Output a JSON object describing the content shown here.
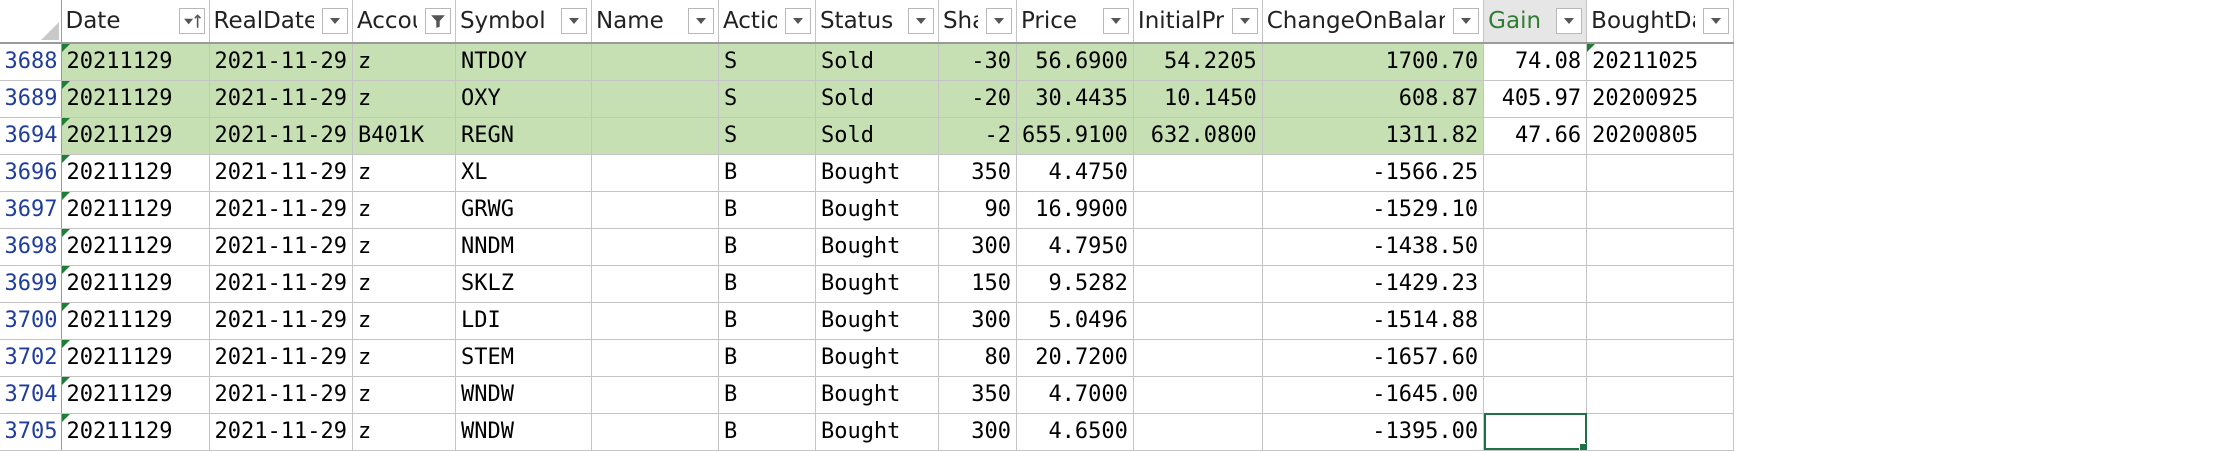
{
  "columns": [
    {
      "key": "date",
      "label": "Date",
      "filter": "sort-asc-icon"
    },
    {
      "key": "realdate",
      "label": "RealDate",
      "filter": "dropdown-icon"
    },
    {
      "key": "account",
      "label": "Account",
      "filter": "filter-active-icon"
    },
    {
      "key": "symbol",
      "label": "Symbol",
      "filter": "dropdown-icon"
    },
    {
      "key": "name",
      "label": "Name",
      "filter": "dropdown-icon"
    },
    {
      "key": "action",
      "label": "Action",
      "filter": "dropdown-icon"
    },
    {
      "key": "status",
      "label": "Status",
      "filter": "dropdown-icon"
    },
    {
      "key": "share",
      "label": "Share",
      "filter": "dropdown-icon"
    },
    {
      "key": "price",
      "label": "Price",
      "filter": "dropdown-icon"
    },
    {
      "key": "initialprice",
      "label": "InitialPrice",
      "filter": "dropdown-icon"
    },
    {
      "key": "changeonbalance",
      "label": "ChangeOnBalance",
      "filter": "dropdown-icon"
    },
    {
      "key": "gain",
      "label": "Gain",
      "filter": "dropdown-icon"
    },
    {
      "key": "boughtdate",
      "label": "BoughtDate",
      "filter": "dropdown-icon"
    }
  ],
  "rows": [
    {
      "num": "3688",
      "date": "20211129",
      "realdate": "2021-11-29",
      "account": "z",
      "symbol": "NTDOY",
      "name": "",
      "action": "S",
      "status": "Sold",
      "share": "-30",
      "price": "56.6900",
      "initialprice": "54.2205",
      "changeonbalance": "1700.70",
      "gain": "74.08",
      "boughtdate": "20211025",
      "sold": true
    },
    {
      "num": "3689",
      "date": "20211129",
      "realdate": "2021-11-29",
      "account": "z",
      "symbol": "OXY",
      "name": "",
      "action": "S",
      "status": "Sold",
      "share": "-20",
      "price": "30.4435",
      "initialprice": "10.1450",
      "changeonbalance": "608.87",
      "gain": "405.97",
      "boughtdate": "20200925",
      "sold": true
    },
    {
      "num": "3694",
      "date": "20211129",
      "realdate": "2021-11-29",
      "account": "B401K",
      "symbol": "REGN",
      "name": "",
      "action": "S",
      "status": "Sold",
      "share": "-2",
      "price": "655.9100",
      "initialprice": "632.0800",
      "changeonbalance": "1311.82",
      "gain": "47.66",
      "boughtdate": "20200805",
      "sold": true
    },
    {
      "num": "3696",
      "date": "20211129",
      "realdate": "2021-11-29",
      "account": "z",
      "symbol": "XL",
      "name": "",
      "action": "B",
      "status": "Bought",
      "share": "350",
      "price": "4.4750",
      "initialprice": "",
      "changeonbalance": "-1566.25",
      "gain": "",
      "boughtdate": ""
    },
    {
      "num": "3697",
      "date": "20211129",
      "realdate": "2021-11-29",
      "account": "z",
      "symbol": "GRWG",
      "name": "",
      "action": "B",
      "status": "Bought",
      "share": "90",
      "price": "16.9900",
      "initialprice": "",
      "changeonbalance": "-1529.10",
      "gain": "",
      "boughtdate": ""
    },
    {
      "num": "3698",
      "date": "20211129",
      "realdate": "2021-11-29",
      "account": "z",
      "symbol": "NNDM",
      "name": "",
      "action": "B",
      "status": "Bought",
      "share": "300",
      "price": "4.7950",
      "initialprice": "",
      "changeonbalance": "-1438.50",
      "gain": "",
      "boughtdate": ""
    },
    {
      "num": "3699",
      "date": "20211129",
      "realdate": "2021-11-29",
      "account": "z",
      "symbol": "SKLZ",
      "name": "",
      "action": "B",
      "status": "Bought",
      "share": "150",
      "price": "9.5282",
      "initialprice": "",
      "changeonbalance": "-1429.23",
      "gain": "",
      "boughtdate": ""
    },
    {
      "num": "3700",
      "date": "20211129",
      "realdate": "2021-11-29",
      "account": "z",
      "symbol": "LDI",
      "name": "",
      "action": "B",
      "status": "Bought",
      "share": "300",
      "price": "5.0496",
      "initialprice": "",
      "changeonbalance": "-1514.88",
      "gain": "",
      "boughtdate": ""
    },
    {
      "num": "3702",
      "date": "20211129",
      "realdate": "2021-11-29",
      "account": "z",
      "symbol": "STEM",
      "name": "",
      "action": "B",
      "status": "Bought",
      "share": "80",
      "price": "20.7200",
      "initialprice": "",
      "changeonbalance": "-1657.60",
      "gain": "",
      "boughtdate": ""
    },
    {
      "num": "3704",
      "date": "20211129",
      "realdate": "2021-11-29",
      "account": "z",
      "symbol": "WNDW",
      "name": "",
      "action": "B",
      "status": "Bought",
      "share": "350",
      "price": "4.7000",
      "initialprice": "",
      "changeonbalance": "-1645.00",
      "gain": "",
      "boughtdate": ""
    },
    {
      "num": "3705",
      "date": "20211129",
      "realdate": "2021-11-29",
      "account": "z",
      "symbol": "WNDW",
      "name": "",
      "action": "B",
      "status": "Bought",
      "share": "300",
      "price": "4.6500",
      "initialprice": "",
      "changeonbalance": "-1395.00",
      "gain": "",
      "boughtdate": "",
      "selected_cell": "gain"
    }
  ],
  "colors": {
    "sold_fill": "#c6e0b4",
    "row_number": "#1f3d9c",
    "selection": "#1e7145"
  }
}
